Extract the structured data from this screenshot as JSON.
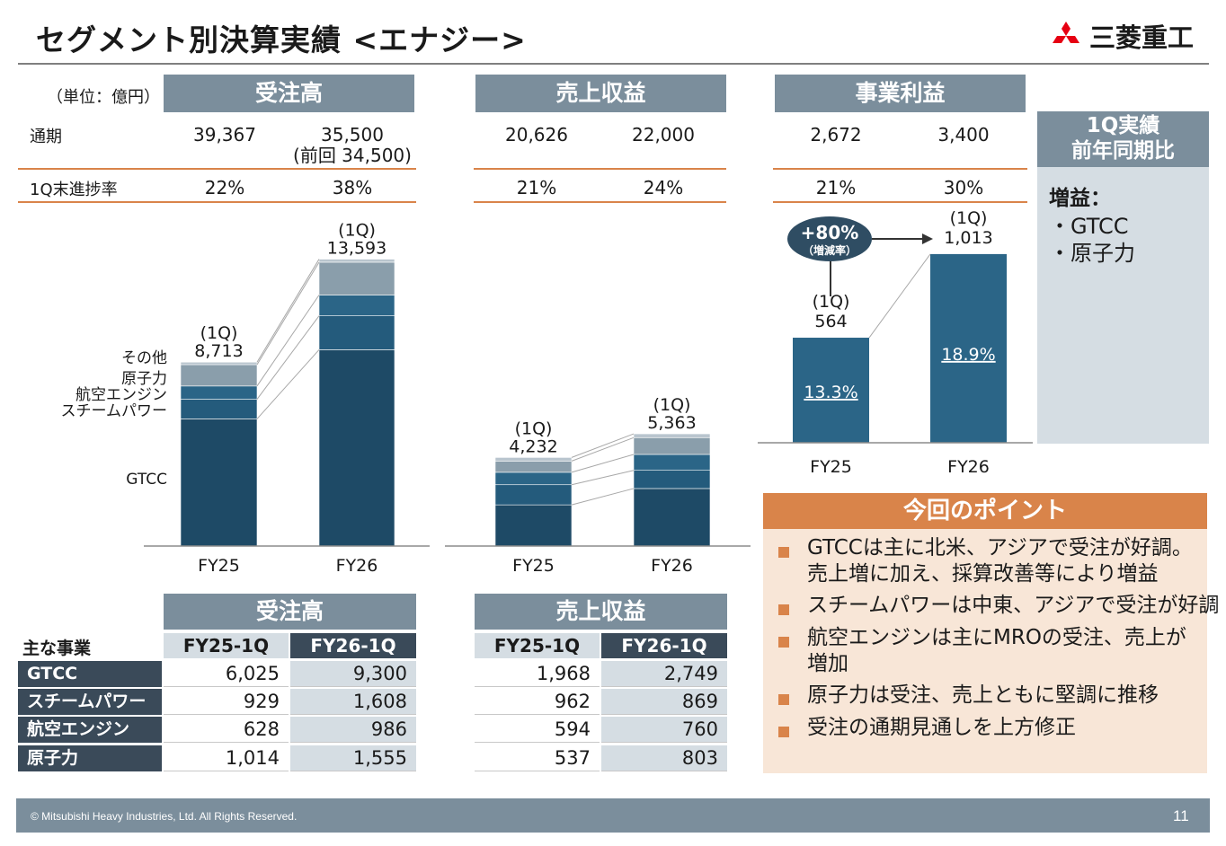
{
  "title": "セグメント別決算実績 <エナジー>",
  "logo": {
    "name": "mitsubishi-logo",
    "text": "三菱重工"
  },
  "unit": "（単位：億円）",
  "summary": {
    "row_labels": {
      "annual": "通期",
      "progress": "1Q末進捗率"
    },
    "orders": {
      "header": "受注高",
      "annual_fy25": "39,367",
      "annual_fy26": "35,500",
      "annual_fy26_prev": "(前回 34,500)",
      "progress_fy25": "22%",
      "progress_fy26": "38%"
    },
    "revenue": {
      "header": "売上収益",
      "annual_fy25": "20,626",
      "annual_fy26": "22,000",
      "progress_fy25": "21%",
      "progress_fy26": "24%"
    },
    "profit": {
      "header": "事業利益",
      "annual_fy25": "2,672",
      "annual_fy26": "3,400",
      "progress_fy25": "21%",
      "progress_fy26": "30%"
    }
  },
  "side_panel": {
    "header_line1": "1Q実績",
    "header_line2": "前年同期比",
    "increase_title": "増益：",
    "items": [
      "・GTCC",
      "・原子力"
    ]
  },
  "chart_data": [
    {
      "type": "bar",
      "title": "受注高",
      "stacked": true,
      "categories": [
        "FY25",
        "FY26"
      ],
      "series": [
        {
          "name": "GTCC",
          "values": [
            6025,
            9300
          ]
        },
        {
          "name": "スチームパワー",
          "values": [
            929,
            1608
          ]
        },
        {
          "name": "航空エンジン",
          "values": [
            628,
            986
          ]
        },
        {
          "name": "原子力",
          "values": [
            1014,
            1555
          ]
        },
        {
          "name": "その他",
          "values": [
            117,
            144
          ]
        }
      ],
      "totals": [
        8713,
        13593
      ],
      "total_labels": [
        {
          "period": "(1Q)",
          "value": "8,713"
        },
        {
          "period": "(1Q)",
          "value": "13,593"
        }
      ],
      "segment_labels": [
        "その他",
        "原子力",
        "航空エンジン",
        "スチームパワー",
        "GTCC"
      ],
      "colors": [
        "#1e4a66",
        "#245b7c",
        "#2b6587",
        "#8a9eab",
        "#b9c5ce"
      ]
    },
    {
      "type": "bar",
      "title": "売上収益",
      "stacked": true,
      "categories": [
        "FY25",
        "FY26"
      ],
      "series": [
        {
          "name": "GTCC",
          "values": [
            1968,
            2749
          ]
        },
        {
          "name": "スチームパワー",
          "values": [
            962,
            869
          ]
        },
        {
          "name": "航空エンジン",
          "values": [
            594,
            760
          ]
        },
        {
          "name": "原子力",
          "values": [
            537,
            803
          ]
        },
        {
          "name": "その他",
          "values": [
            171,
            182
          ]
        }
      ],
      "totals": [
        4232,
        5363
      ],
      "total_labels": [
        {
          "period": "(1Q)",
          "value": "4,232"
        },
        {
          "period": "(1Q)",
          "value": "5,363"
        }
      ],
      "colors": [
        "#1e4a66",
        "#245b7c",
        "#2b6587",
        "#8a9eab",
        "#b9c5ce"
      ]
    },
    {
      "type": "bar",
      "title": "事業利益",
      "categories": [
        "FY25",
        "FY26"
      ],
      "values": [
        564,
        1013
      ],
      "value_labels": [
        {
          "period": "(1Q)",
          "value": "564"
        },
        {
          "period": "(1Q)",
          "value": "1,013"
        }
      ],
      "margins": [
        "13.3%",
        "18.9%"
      ],
      "growth": {
        "value": "+80%",
        "label": "（増減率）"
      },
      "colors": [
        "#2b6587"
      ]
    }
  ],
  "points": {
    "header": "今回のポイント",
    "items": [
      [
        "GTCCは主に北米、アジアで受注が好調。",
        "売上増に加え、採算改善等により増益"
      ],
      [
        "スチームパワーは中東、アジアで受注が好調"
      ],
      [
        "航空エンジンは主にMROの受注、売上が",
        "増加"
      ],
      [
        "原子力は受注、売上ともに堅調に推移"
      ],
      [
        "受注の通期見通しを上方修正"
      ]
    ]
  },
  "tables": {
    "row_header": "主な事業",
    "rows": [
      "GTCC",
      "スチームパワー",
      "航空エンジン",
      "原子力"
    ],
    "orders": {
      "header": "受注高",
      "cols": [
        "FY25-1Q",
        "FY26-1Q"
      ],
      "values": [
        [
          "6,025",
          "9,300"
        ],
        [
          "929",
          "1,608"
        ],
        [
          "628",
          "986"
        ],
        [
          "1,014",
          "1,555"
        ]
      ]
    },
    "revenue": {
      "header": "売上収益",
      "cols": [
        "FY25-1Q",
        "FY26-1Q"
      ],
      "values": [
        [
          "1,968",
          "2,749"
        ],
        [
          "962",
          "869"
        ],
        [
          "594",
          "760"
        ],
        [
          "537",
          "803"
        ]
      ]
    }
  },
  "footer": {
    "copyright": "© Mitsubishi Heavy Industries, Ltd.  All Rights Reserved.",
    "page": "11"
  }
}
